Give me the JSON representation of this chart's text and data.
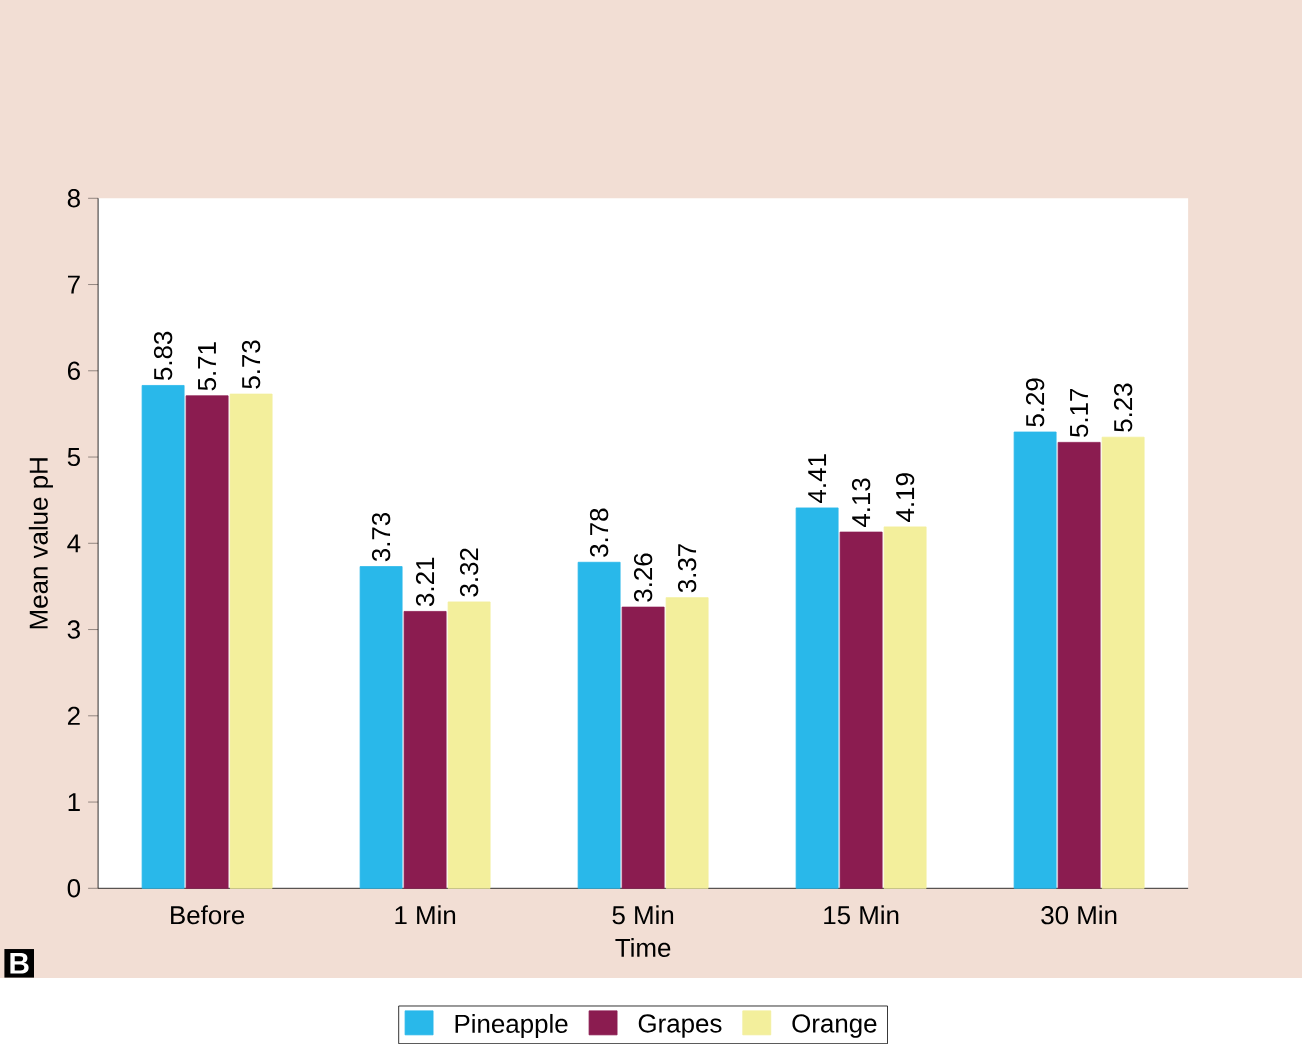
{
  "chart_data": {
    "type": "bar",
    "xlabel": "Time",
    "ylabel": "Mean value pH",
    "categories": [
      "Before",
      "1 Min",
      "5 Min",
      "15 Min",
      "30 Min"
    ],
    "series": [
      {
        "name": "Pineapple",
        "color": "#29b8ea",
        "values": [
          5.83,
          3.73,
          3.78,
          4.41,
          5.29
        ]
      },
      {
        "name": "Grapes",
        "color": "#8b1c50",
        "values": [
          5.71,
          3.21,
          3.26,
          4.13,
          5.17
        ]
      },
      {
        "name": "Orange",
        "color": "#f3ef9c",
        "values": [
          5.73,
          3.32,
          3.37,
          4.19,
          5.23
        ]
      }
    ],
    "ylim": [
      0,
      8
    ],
    "yticks": [
      0,
      1,
      2,
      3,
      4,
      5,
      6,
      7,
      8
    ],
    "data_labels": true,
    "legend": "bottom",
    "grid": false,
    "annotations": [
      "B"
    ]
  }
}
